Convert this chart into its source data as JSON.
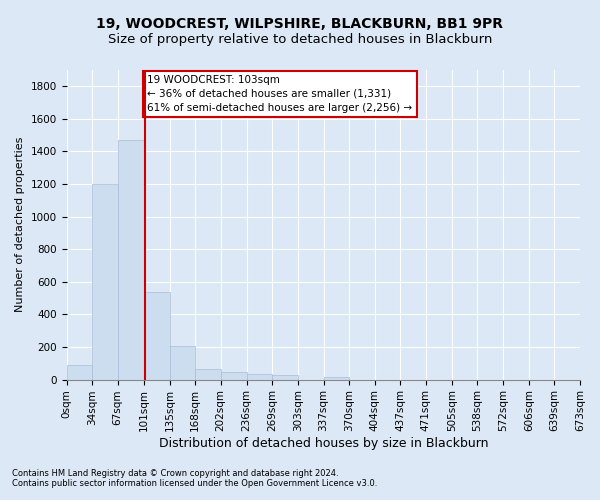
{
  "title1": "19, WOODCREST, WILPSHIRE, BLACKBURN, BB1 9PR",
  "title2": "Size of property relative to detached houses in Blackburn",
  "xlabel": "Distribution of detached houses by size in Blackburn",
  "ylabel": "Number of detached properties",
  "footnote1": "Contains HM Land Registry data © Crown copyright and database right 2024.",
  "footnote2": "Contains public sector information licensed under the Open Government Licence v3.0.",
  "bin_edges": [
    0,
    34,
    67,
    101,
    135,
    168,
    202,
    236,
    269,
    303,
    337,
    370,
    404,
    437,
    471,
    505,
    538,
    572,
    606,
    639,
    673
  ],
  "bar_heights": [
    90,
    1200,
    1470,
    540,
    205,
    65,
    45,
    35,
    28,
    0,
    15,
    0,
    0,
    0,
    0,
    0,
    0,
    0,
    0,
    0
  ],
  "bar_color": "#ccddf0",
  "bar_edge_color": "#aabcd8",
  "property_size": 103,
  "red_line_color": "#cc0000",
  "annotation_text": "19 WOODCREST: 103sqm\n← 36% of detached houses are smaller (1,331)\n61% of semi-detached houses are larger (2,256) →",
  "annotation_box_color": "#ffffff",
  "annotation_box_edge": "#cc0000",
  "ylim": [
    0,
    1900
  ],
  "yticks": [
    0,
    200,
    400,
    600,
    800,
    1000,
    1200,
    1400,
    1600,
    1800
  ],
  "background_color": "#dce8f5",
  "grid_color": "#ffffff",
  "title1_fontsize": 10,
  "title2_fontsize": 9.5,
  "xlabel_fontsize": 9,
  "ylabel_fontsize": 8,
  "tick_fontsize": 7.5,
  "annotation_fontsize": 7.5
}
